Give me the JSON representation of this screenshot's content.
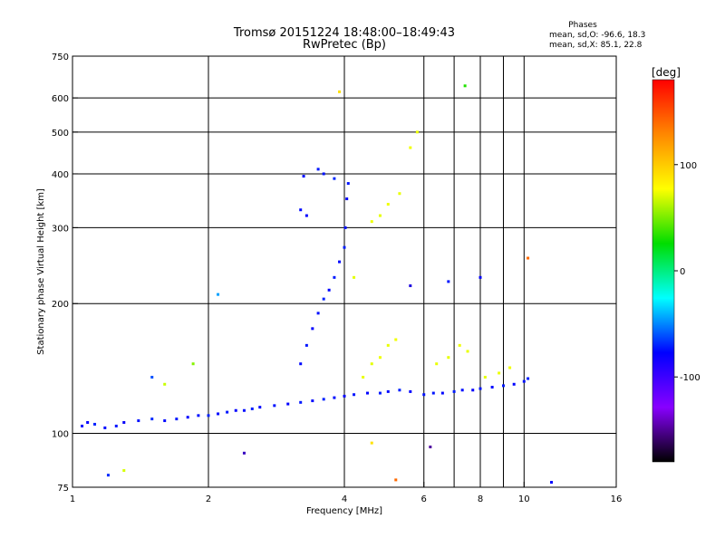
{
  "chart_data": {
    "type": "scatter",
    "title": "Tromsø 20151224 18:48:00–18:49:43",
    "subtitle": "RwPretec (Bp)",
    "xlabel": "Frequency [MHz]",
    "ylabel": "Stationary phase Virtual Height [km]",
    "x_scale": "log",
    "y_scale": "log",
    "xlim": [
      1,
      16
    ],
    "ylim": [
      75,
      750
    ],
    "x_ticks": [
      1,
      2,
      4,
      6,
      8,
      10,
      16
    ],
    "x_tick_labels": [
      "1",
      "2",
      "4",
      "6",
      "8",
      "10",
      "16"
    ],
    "x_grid_lines": [
      2,
      4,
      6,
      7,
      8,
      9,
      10
    ],
    "y_ticks": [
      75,
      100,
      200,
      300,
      400,
      500,
      600,
      750
    ],
    "y_tick_labels": [
      "75",
      "100",
      "200",
      "300",
      "400",
      "500",
      "600",
      "750"
    ],
    "y_grid_lines": [
      100,
      200,
      300,
      400,
      500,
      600
    ],
    "grid": true,
    "legend_placement": "top-right",
    "phase_legend": {
      "header": "Phases",
      "line1": "mean, sd,O: -96.6, 18.3",
      "line2": "mean, sd,X:  85.1, 22.8"
    },
    "colorbar": {
      "label": "[deg]",
      "range": [
        -180,
        180
      ],
      "ticks": [
        100,
        0,
        -100
      ],
      "tick_labels": [
        "100",
        "0",
        "-100"
      ],
      "colors": [
        "#ff0000",
        "#ff8800",
        "#ffff00",
        "#00dd00",
        "#00ffff",
        "#0000ff",
        "#8800ff",
        "#000000"
      ]
    },
    "series": [
      {
        "mode": "O",
        "points": [
          [
            1.05,
            104,
            -96
          ],
          [
            1.08,
            106,
            -100
          ],
          [
            1.12,
            105,
            -92
          ],
          [
            1.18,
            103,
            -98
          ],
          [
            1.25,
            104,
            -95
          ],
          [
            1.3,
            106,
            -102
          ],
          [
            1.4,
            107,
            -96
          ],
          [
            1.5,
            108,
            -90
          ],
          [
            1.6,
            107,
            -98
          ],
          [
            1.7,
            108,
            -94
          ],
          [
            1.8,
            109,
            -100
          ],
          [
            1.9,
            110,
            -96
          ],
          [
            2.0,
            110,
            -92
          ],
          [
            2.1,
            111,
            -98
          ],
          [
            2.2,
            112,
            -95
          ],
          [
            2.3,
            113,
            -100
          ],
          [
            2.4,
            113,
            -97
          ],
          [
            2.5,
            114,
            -93
          ],
          [
            2.6,
            115,
            -99
          ],
          [
            2.8,
            116,
            -96
          ],
          [
            3.0,
            117,
            -100
          ],
          [
            3.2,
            118,
            -94
          ],
          [
            3.4,
            119,
            -98
          ],
          [
            3.6,
            120,
            -92
          ],
          [
            3.8,
            121,
            -97
          ],
          [
            4.0,
            122,
            -101
          ],
          [
            4.2,
            123,
            -95
          ],
          [
            4.5,
            124,
            -99
          ],
          [
            4.8,
            124,
            -94
          ],
          [
            5.0,
            125,
            -98
          ],
          [
            5.3,
            126,
            -92
          ],
          [
            5.6,
            125,
            -100
          ],
          [
            6.0,
            123,
            -96
          ],
          [
            6.3,
            124,
            -95
          ],
          [
            6.6,
            124,
            -99
          ],
          [
            7.0,
            125,
            -93
          ],
          [
            7.3,
            126,
            -97
          ],
          [
            7.7,
            126,
            -101
          ],
          [
            8.0,
            127,
            -95
          ],
          [
            8.5,
            128,
            -98
          ],
          [
            9.0,
            129,
            -94
          ],
          [
            9.5,
            130,
            -99
          ],
          [
            10.0,
            132,
            -96
          ],
          [
            10.2,
            134,
            -92
          ]
        ]
      },
      {
        "mode": "O-cusp",
        "points": [
          [
            3.2,
            145,
            -98
          ],
          [
            3.3,
            160,
            -95
          ],
          [
            3.4,
            175,
            -100
          ],
          [
            3.5,
            190,
            -96
          ],
          [
            3.6,
            205,
            -92
          ],
          [
            3.7,
            215,
            -99
          ],
          [
            3.8,
            230,
            -94
          ],
          [
            3.9,
            250,
            -98
          ],
          [
            4.0,
            270,
            -93
          ],
          [
            4.02,
            300,
            -97
          ],
          [
            4.05,
            350,
            -101
          ],
          [
            4.08,
            380,
            -95
          ],
          [
            3.8,
            390,
            -90
          ],
          [
            3.6,
            400,
            -96
          ],
          [
            3.5,
            410,
            -94
          ],
          [
            3.3,
            320,
            -100
          ],
          [
            3.2,
            330,
            -98
          ],
          [
            3.25,
            395,
            -97
          ]
        ]
      },
      {
        "mode": "X",
        "points": [
          [
            4.4,
            135,
            85
          ],
          [
            4.6,
            145,
            80
          ],
          [
            4.8,
            150,
            88
          ],
          [
            5.0,
            160,
            84
          ],
          [
            5.2,
            165,
            90
          ],
          [
            4.6,
            310,
            86
          ],
          [
            4.8,
            320,
            82
          ],
          [
            5.0,
            340,
            88
          ],
          [
            5.3,
            360,
            84
          ],
          [
            5.6,
            460,
            90
          ],
          [
            5.8,
            500,
            86
          ],
          [
            6.4,
            145,
            85
          ],
          [
            6.8,
            150,
            82
          ],
          [
            7.2,
            160,
            88
          ],
          [
            7.5,
            155,
            84
          ],
          [
            8.2,
            135,
            80
          ],
          [
            8.8,
            138,
            86
          ],
          [
            9.3,
            142,
            90
          ]
        ]
      },
      {
        "mode": "scattered",
        "points": [
          [
            3.9,
            620,
            110
          ],
          [
            4.2,
            230,
            80
          ],
          [
            5.6,
            220,
            -110
          ],
          [
            6.8,
            225,
            -95
          ],
          [
            7.4,
            640,
            10
          ],
          [
            8.0,
            230,
            -100
          ],
          [
            10.2,
            255,
            150
          ],
          [
            1.5,
            135,
            -80
          ],
          [
            1.6,
            130,
            60
          ],
          [
            2.1,
            210,
            -60
          ],
          [
            1.85,
            145,
            40
          ],
          [
            2.4,
            90,
            -120
          ],
          [
            4.6,
            95,
            110
          ],
          [
            5.2,
            78,
            150
          ],
          [
            6.2,
            93,
            -130
          ],
          [
            11.5,
            77,
            -100
          ],
          [
            1.2,
            80,
            -90
          ],
          [
            1.3,
            82,
            70
          ]
        ]
      }
    ]
  }
}
